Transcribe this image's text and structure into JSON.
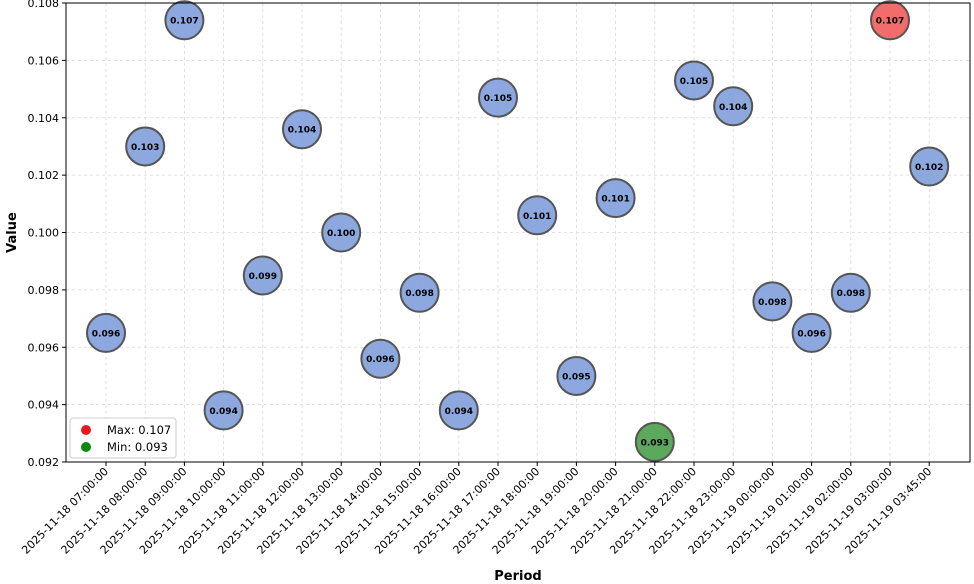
{
  "chart_data": {
    "type": "scatter",
    "xlabel": "Period",
    "ylabel": "Value",
    "ylim": [
      0.092,
      0.108
    ],
    "yticks": [
      "0.092",
      "0.094",
      "0.096",
      "0.098",
      "0.100",
      "0.102",
      "0.104",
      "0.106",
      "0.108"
    ],
    "grid": true,
    "legend_position": "bottom-left",
    "legend": [
      {
        "label": "Max: 0.107",
        "color": "#e31a1c"
      },
      {
        "label": "Min: 0.093",
        "color": "#0c8a0c"
      }
    ],
    "colors": {
      "default": "#7f9fdb",
      "max": "#f25c5c",
      "min": "#4a9e4a",
      "edge": "#555555"
    },
    "points": [
      {
        "x": "2025-11-18 07:00:00",
        "y": 0.0965,
        "label": "0.096",
        "kind": "default"
      },
      {
        "x": "2025-11-18 08:00:00",
        "y": 0.103,
        "label": "0.103",
        "kind": "default"
      },
      {
        "x": "2025-11-18 09:00:00",
        "y": 0.1074,
        "label": "0.107",
        "kind": "default"
      },
      {
        "x": "2025-11-18 10:00:00",
        "y": 0.0938,
        "label": "0.094",
        "kind": "default"
      },
      {
        "x": "2025-11-18 11:00:00",
        "y": 0.0985,
        "label": "0.099",
        "kind": "default"
      },
      {
        "x": "2025-11-18 12:00:00",
        "y": 0.1036,
        "label": "0.104",
        "kind": "default"
      },
      {
        "x": "2025-11-18 13:00:00",
        "y": 0.1,
        "label": "0.100",
        "kind": "default"
      },
      {
        "x": "2025-11-18 14:00:00",
        "y": 0.0956,
        "label": "0.096",
        "kind": "default"
      },
      {
        "x": "2025-11-18 15:00:00",
        "y": 0.0979,
        "label": "0.098",
        "kind": "default"
      },
      {
        "x": "2025-11-18 16:00:00",
        "y": 0.0938,
        "label": "0.094",
        "kind": "default"
      },
      {
        "x": "2025-11-18 17:00:00",
        "y": 0.1047,
        "label": "0.105",
        "kind": "default"
      },
      {
        "x": "2025-11-18 18:00:00",
        "y": 0.1006,
        "label": "0.101",
        "kind": "default"
      },
      {
        "x": "2025-11-18 19:00:00",
        "y": 0.095,
        "label": "0.095",
        "kind": "default"
      },
      {
        "x": "2025-11-18 20:00:00",
        "y": 0.1012,
        "label": "0.101",
        "kind": "default"
      },
      {
        "x": "2025-11-18 21:00:00",
        "y": 0.0927,
        "label": "0.093",
        "kind": "min"
      },
      {
        "x": "2025-11-18 22:00:00",
        "y": 0.1053,
        "label": "0.105",
        "kind": "default"
      },
      {
        "x": "2025-11-18 23:00:00",
        "y": 0.1044,
        "label": "0.104",
        "kind": "default"
      },
      {
        "x": "2025-11-19 00:00:00",
        "y": 0.0976,
        "label": "0.098",
        "kind": "default"
      },
      {
        "x": "2025-11-19 01:00:00",
        "y": 0.0965,
        "label": "0.096",
        "kind": "default"
      },
      {
        "x": "2025-11-19 02:00:00",
        "y": 0.0979,
        "label": "0.098",
        "kind": "default"
      },
      {
        "x": "2025-11-19 03:00:00",
        "y": 0.1074,
        "label": "0.107",
        "kind": "max"
      },
      {
        "x": "2025-11-19 03:45:00",
        "y": 0.1023,
        "label": "0.102",
        "kind": "default"
      }
    ]
  }
}
